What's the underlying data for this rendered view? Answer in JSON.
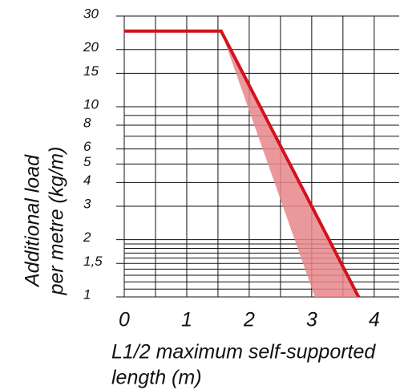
{
  "chart_data": {
    "type": "line",
    "ylabel": [
      "Additional load",
      "per metre (kg/m)"
    ],
    "xlabel": [
      "L1/2 maximum self-supported",
      "length (m)"
    ],
    "xlim": [
      0,
      4.4
    ],
    "xticks": [
      0,
      1,
      2,
      3,
      4
    ],
    "x_minor_ticks": [
      0.5,
      1.5,
      2.5,
      3.5
    ],
    "ylim": [
      1,
      30
    ],
    "y_log": true,
    "yticks": [
      1,
      {
        "value": 1.5,
        "label": "1,5"
      },
      2,
      3,
      4,
      5,
      6,
      8,
      10,
      15,
      20,
      30
    ],
    "y_minor_ticks": [
      1.1,
      1.2,
      1.3,
      1.4,
      1.6,
      1.7,
      1.8,
      1.9,
      7,
      9
    ],
    "grid": true,
    "area": {
      "color": "#e8868c",
      "x": [
        1.55,
        3.05,
        3.75
      ],
      "values": [
        25,
        1,
        1
      ]
    },
    "series": [
      {
        "color": "#d3121e",
        "x": [
          0,
          1.55,
          3.75
        ],
        "values": [
          25,
          25,
          1
        ]
      }
    ]
  }
}
